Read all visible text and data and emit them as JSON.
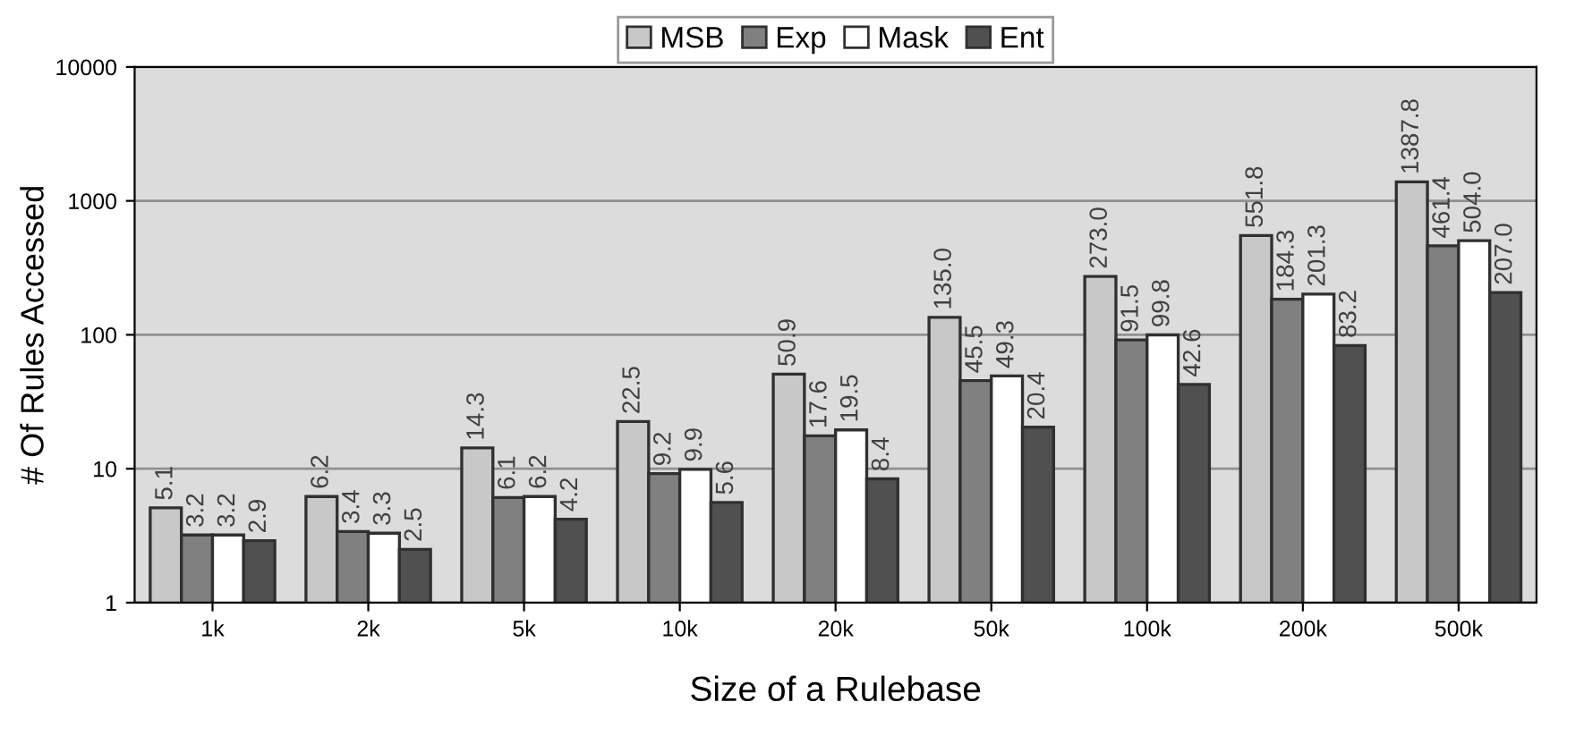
{
  "chart_data": {
    "type": "bar",
    "xlabel": "Size of a Rulebase",
    "ylabel": "# Of Rules Accessed",
    "categories": [
      "1k",
      "2k",
      "5k",
      "10k",
      "20k",
      "50k",
      "100k",
      "200k",
      "500k"
    ],
    "series": [
      {
        "name": "MSB",
        "color": "#c8c8c8",
        "values": [
          5.1,
          6.2,
          14.3,
          22.5,
          50.9,
          135.0,
          273.0,
          551.8,
          1387.8
        ],
        "value_labels": [
          "5.1",
          "6.2",
          "14.3",
          "22.5",
          "50.9",
          "135.0",
          "273.0",
          "551.8",
          "1387.8"
        ]
      },
      {
        "name": "Exp",
        "color": "#808080",
        "values": [
          3.2,
          3.4,
          6.1,
          9.2,
          17.6,
          45.5,
          91.5,
          184.3,
          461.4
        ],
        "value_labels": [
          "3.2",
          "3.4",
          "6.1",
          "9.2",
          "17.6",
          "45.5",
          "91.5",
          "184.3",
          "461.4"
        ]
      },
      {
        "name": "Mask",
        "color": "#ffffff",
        "values": [
          3.2,
          3.3,
          6.2,
          9.9,
          19.5,
          49.3,
          99.8,
          201.3,
          504.0
        ],
        "value_labels": [
          "3.2",
          "3.3",
          "6.2",
          "9.9",
          "19.5",
          "49.3",
          "99.8",
          "201.3",
          "504.0"
        ]
      },
      {
        "name": "Ent",
        "color": "#505050",
        "values": [
          2.9,
          2.5,
          4.2,
          5.6,
          8.4,
          20.4,
          42.6,
          83.2,
          207.0
        ],
        "value_labels": [
          "2.9",
          "2.5",
          "4.2",
          "5.6",
          "8.4",
          "20.4",
          "42.6",
          "83.2",
          "207.0"
        ]
      }
    ],
    "log": true,
    "ylim": [
      1,
      10000
    ],
    "yticks": [
      1,
      10,
      100,
      1000,
      10000
    ],
    "grid": "y",
    "legend": "top"
  }
}
